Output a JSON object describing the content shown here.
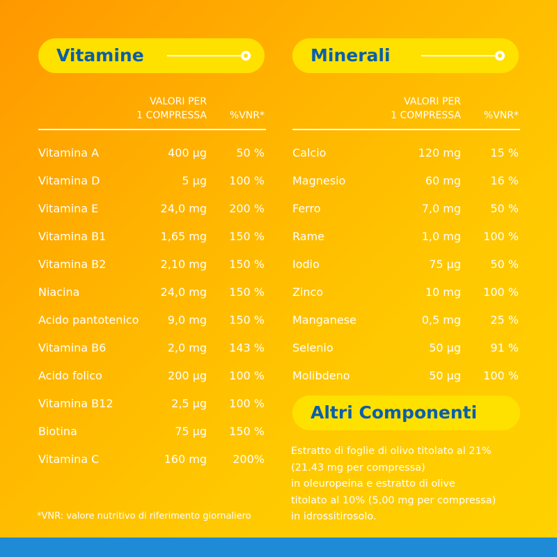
{
  "vitamins": {
    "title": "Vitamine",
    "header_amount": [
      "VALORI PER",
      "1 COMPRESSA"
    ],
    "header_vnr": "%VNR*",
    "rows": [
      [
        "Vitamina A",
        "400 µg",
        "50 %"
      ],
      [
        "Vitamina D",
        "5 µg",
        "100 %"
      ],
      [
        "Vitamina E",
        "24,0 mg",
        "200 %"
      ],
      [
        "Vitamina B1",
        "1,65 mg",
        "150 %"
      ],
      [
        "Vitamina B2",
        "2,10 mg",
        "150 %"
      ],
      [
        "Niacina",
        "24,0 mg",
        "150 %"
      ],
      [
        "Acido pantotenico",
        "9,0 mg",
        "150 %"
      ],
      [
        "Vitamina B6",
        "2,0 mg",
        "143 %"
      ],
      [
        "Acido folico",
        "200 µg",
        "100 %"
      ],
      [
        "Vitamina B12",
        "2,5 µg",
        "100 %"
      ],
      [
        "Biotina",
        "75 µg",
        "150 %"
      ],
      [
        "Vitamina C",
        "160 mg",
        "200%"
      ]
    ],
    "footnote": "*VNR: valore nutritivo di riferimento giornaliero"
  },
  "minerals": {
    "title": "Minerali",
    "header_amount": [
      "VALORI PER",
      "1 COMPRESSA"
    ],
    "header_vnr": "%VNR*",
    "rows": [
      [
        "Calcio",
        "120 mg",
        "15 %"
      ],
      [
        "Magnesio",
        "60 mg",
        "16 %"
      ],
      [
        "Ferro",
        "7,0 mg",
        "50 %"
      ],
      [
        "Rame",
        "1,0 mg",
        "100 %"
      ],
      [
        "Iodio",
        "75 µg",
        "50 %"
      ],
      [
        "Zinco",
        "10 mg",
        "100 %"
      ],
      [
        "Manganese",
        "0,5 mg",
        "25 %"
      ],
      [
        "Selenio",
        "50 µg",
        "91 %"
      ],
      [
        "Molibdeno",
        "50 µg",
        "100 %"
      ]
    ]
  },
  "other": {
    "title": "Altri Componenti",
    "lines": [
      "Estratto di foglie di olivo titolato al 21%",
      "(21.43 mg per compressa)",
      "in oleuropeina e estratto di olive",
      "titolato al 10% (5,00 mg per compressa)",
      "in idrossitirosolo."
    ]
  }
}
